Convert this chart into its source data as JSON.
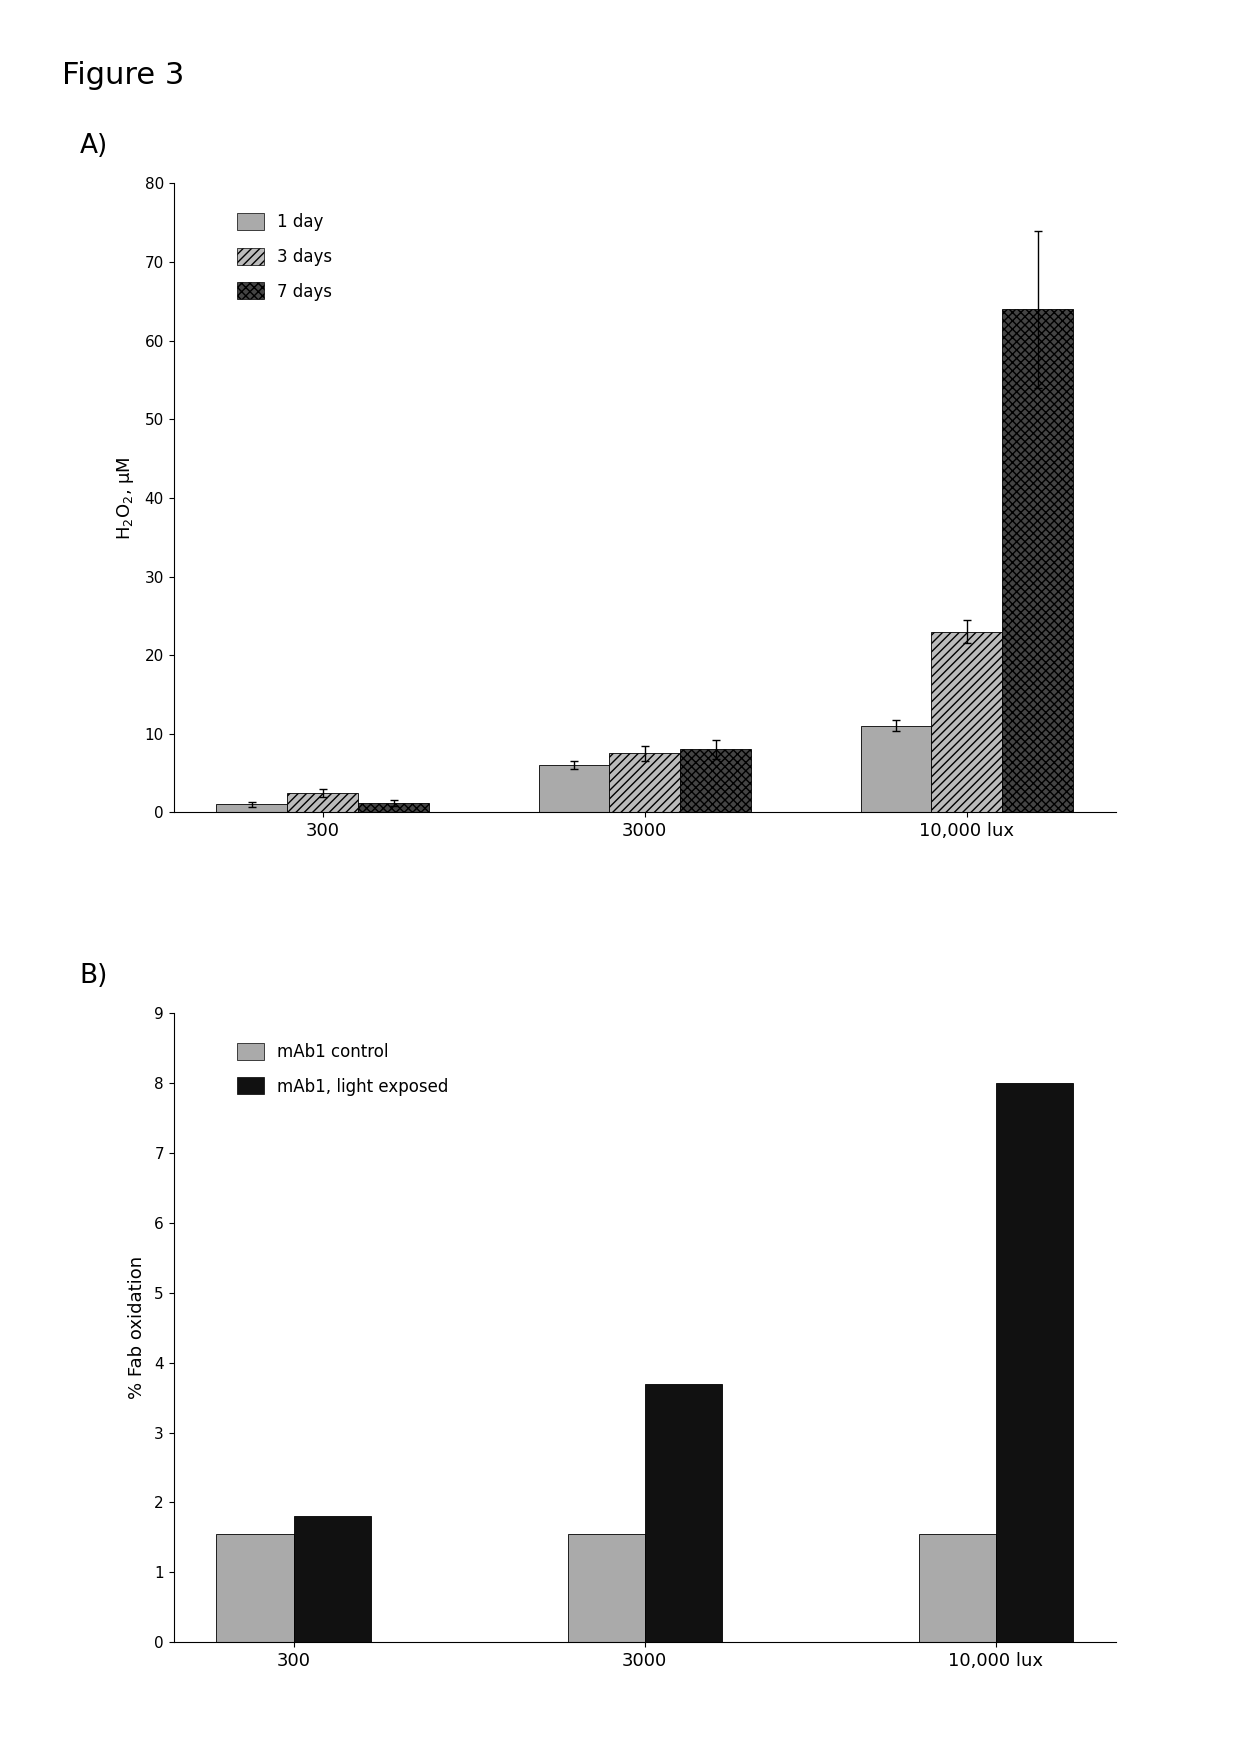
{
  "figure_title": "Figure 3",
  "panel_A": {
    "label": "A)",
    "categories": [
      "300",
      "3000",
      "10,000 lux"
    ],
    "series_names": [
      "1 day",
      "3 days",
      "7 days"
    ],
    "values": [
      [
        1.0,
        6.0,
        11.0
      ],
      [
        2.5,
        7.5,
        23.0
      ],
      [
        1.2,
        8.0,
        64.0
      ]
    ],
    "errors": [
      [
        0.3,
        0.5,
        0.7
      ],
      [
        0.5,
        1.0,
        1.5
      ],
      [
        0.4,
        1.2,
        10.0
      ]
    ],
    "hatch_styles": [
      "",
      "////",
      "xxxx"
    ],
    "colors": [
      "#aaaaaa",
      "#bbbbbb",
      "#444444"
    ],
    "ylabel": "H$_2$O$_2$, μM",
    "ylim": [
      0,
      80
    ],
    "yticks": [
      0,
      10,
      20,
      30,
      40,
      50,
      60,
      70,
      80
    ]
  },
  "panel_B": {
    "label": "B)",
    "categories": [
      "300",
      "3000",
      "10,000 lux"
    ],
    "series_names": [
      "mAb1 control",
      "mAb1, light exposed"
    ],
    "values": [
      [
        1.55,
        1.55,
        1.55
      ],
      [
        1.8,
        3.7,
        8.0
      ]
    ],
    "colors": [
      "#aaaaaa",
      "#111111"
    ],
    "ylabel": "% Fab oxidation",
    "ylim": [
      0,
      9
    ],
    "yticks": [
      0,
      1,
      2,
      3,
      4,
      5,
      6,
      7,
      8,
      9
    ]
  },
  "background_color": "#ffffff",
  "bar_width": 0.22
}
